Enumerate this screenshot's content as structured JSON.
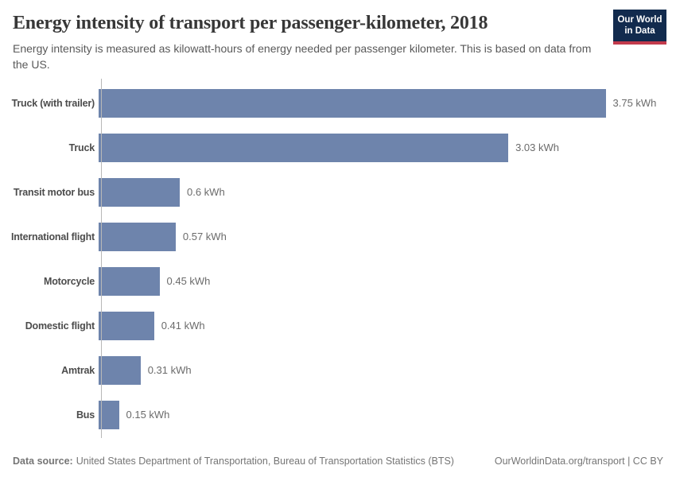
{
  "header": {
    "title": "Energy intensity of transport per passenger-kilometer, 2018",
    "subtitle": "Energy intensity is measured as kilowatt-hours of energy needed per passenger kilometer. This is based on data from the US.",
    "logo": {
      "line1": "Our World",
      "line2": "in Data"
    }
  },
  "chart_data": {
    "type": "bar",
    "orientation": "horizontal",
    "title": "Energy intensity of transport per passenger-kilometer, 2018",
    "unit": "kWh",
    "categories": [
      "Truck (with trailer)",
      "Truck",
      "Transit motor bus",
      "International flight",
      "Motorcycle",
      "Domestic flight",
      "Amtrak",
      "Bus"
    ],
    "values": [
      3.75,
      3.03,
      0.6,
      0.57,
      0.45,
      0.41,
      0.31,
      0.15
    ],
    "value_labels": [
      "3.75 kWh",
      "3.03 kWh",
      "0.6 kWh",
      "0.57 kWh",
      "0.45 kWh",
      "0.41 kWh",
      "0.31 kWh",
      "0.15 kWh"
    ],
    "xlim": [
      0,
      3.75
    ],
    "grid": false,
    "legend": false,
    "bar_color": "#6e84ac"
  },
  "footer": {
    "source_label": "Data source:",
    "source_text": "United States Department of Transportation, Bureau of Transportation Statistics (BTS)",
    "attribution": "OurWorldinData.org/transport | CC BY"
  },
  "colors": {
    "bar": "#6e84ac",
    "logo_background": "#122b4e",
    "logo_accent": "#c23a4c",
    "title_text": "#373737",
    "axis_line": "#b8b8b8"
  }
}
